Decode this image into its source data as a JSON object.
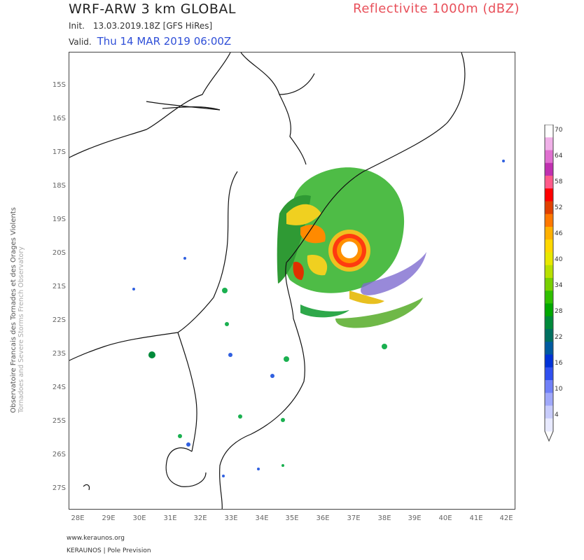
{
  "header": {
    "model_title": "WRF-ARW 3 km GLOBAL",
    "product_title": "Reflectivite 1000m (dBZ)",
    "init_label": "Init.",
    "init_value": "13.03.2019.18Z [GFS HiRes]",
    "valid_label": "Valid.",
    "valid_value": "Thu 14 MAR 2019 06:00Z"
  },
  "map": {
    "lat_labels": [
      "15S",
      "16S",
      "17S",
      "18S",
      "19S",
      "20S",
      "21S",
      "22S",
      "23S",
      "24S",
      "25S",
      "26S",
      "27S"
    ],
    "lon_labels": [
      "28E",
      "29E",
      "30E",
      "31E",
      "32E",
      "33E",
      "34E",
      "35E",
      "36E",
      "37E",
      "38E",
      "39E",
      "40E",
      "41E",
      "42E"
    ]
  },
  "colorbar": {
    "labels": [
      "70",
      "64",
      "58",
      "52",
      "46",
      "40",
      "34",
      "28",
      "22",
      "16",
      "10",
      "4"
    ],
    "colors": [
      "#ffffff",
      "#f0b0e8",
      "#e070d0",
      "#c030b0",
      "#ff5a8a",
      "#ff0000",
      "#e04000",
      "#ff7800",
      "#ffb000",
      "#ffd800",
      "#e8e800",
      "#b8e000",
      "#78d000",
      "#30c000",
      "#00a800",
      "#008a3a",
      "#007060",
      "#005aa0",
      "#0032d8",
      "#3050f0",
      "#7080f8",
      "#a0a8fa",
      "#c8ccfc",
      "#e8eaff"
    ]
  },
  "side_text": {
    "line1": "Observatoire Francais des Tornades et des Orages Violents",
    "line2": "Tornadoes and Severe Storms French Observatory"
  },
  "footer": {
    "url": "www.keraunos.org",
    "brand": "KERAUNOS | Pole Prevision"
  }
}
